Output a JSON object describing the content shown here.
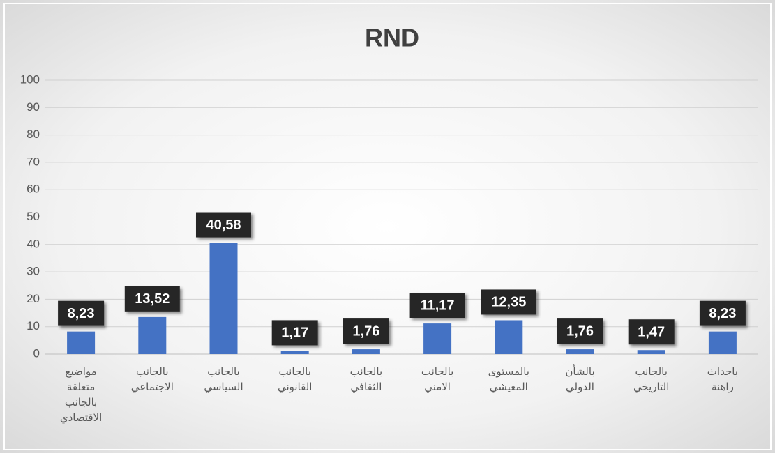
{
  "chart_data": {
    "type": "bar",
    "title": "RND",
    "categories": [
      "مواضيع متعلقة بالجانب الاقتصادي",
      "بالجانب الاجتماعي",
      "بالجانب السياسي",
      "بالجانب القانوني",
      "بالجانب الثقافي",
      "بالجانب الامني",
      "بالمستوى المعيشي",
      "بالشأن الدولي",
      "بالجانب التاريخي",
      "باحداث راهنة"
    ],
    "values": [
      8.23,
      13.52,
      40.58,
      1.17,
      1.76,
      11.17,
      12.35,
      1.76,
      1.47,
      8.23
    ],
    "value_labels": [
      "8,23",
      "13,52",
      "40,58",
      "1,17",
      "1,76",
      "11,17",
      "12,35",
      "1,76",
      "1,47",
      "8,23"
    ],
    "color": "#4472c4",
    "ylim": [
      0,
      100
    ],
    "yticks": [
      0,
      10,
      20,
      30,
      40,
      50,
      60,
      70,
      80,
      90,
      100
    ],
    "grid": true
  }
}
